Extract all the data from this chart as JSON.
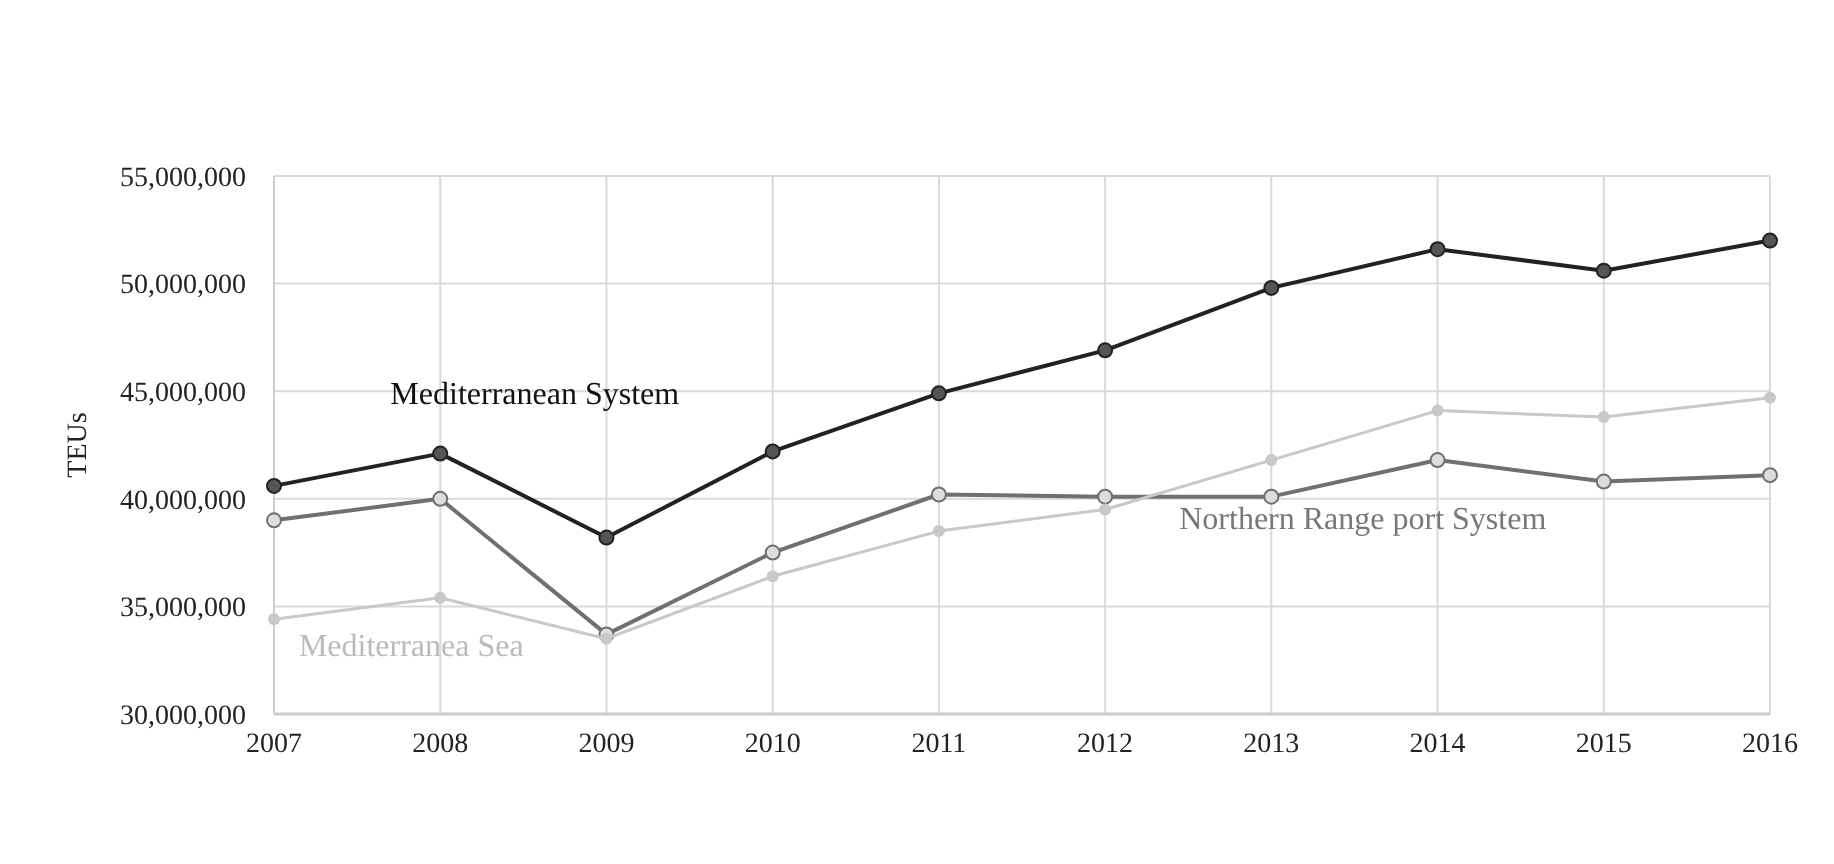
{
  "chart_data": {
    "type": "line",
    "ylabel": "TEUs",
    "categories": [
      "2007",
      "2008",
      "2009",
      "2010",
      "2011",
      "2012",
      "2013",
      "2014",
      "2015",
      "2016"
    ],
    "series": [
      {
        "name": "Mediterranean System",
        "color": "#222222",
        "values": [
          40600000,
          42100000,
          38200000,
          42200000,
          44900000,
          46900000,
          49800000,
          51600000,
          50600000,
          52000000
        ]
      },
      {
        "name": "Northern Range port System",
        "color": "#707070",
        "values": [
          39000000,
          40000000,
          33700000,
          37500000,
          40200000,
          40100000,
          40100000,
          41800000,
          40800000,
          41100000
        ]
      },
      {
        "name": "Mediterranea Sea",
        "color": "#c8c8c8",
        "values": [
          34400000,
          35400000,
          33500000,
          36400000,
          38500000,
          39500000,
          41800000,
          44100000,
          43800000,
          44700000
        ]
      }
    ],
    "ylim": [
      30000000,
      55000000
    ],
    "yticks": [
      {
        "value": 30000000,
        "label": "30,000,000"
      },
      {
        "value": 35000000,
        "label": "35,000,000"
      },
      {
        "value": 40000000,
        "label": "40,000,000"
      },
      {
        "value": 45000000,
        "label": "45,000,000"
      },
      {
        "value": 50000000,
        "label": "50,000,000"
      },
      {
        "value": 55000000,
        "label": "55,000,000"
      }
    ],
    "grid": true,
    "marker": "circle",
    "line_style": "solid"
  }
}
